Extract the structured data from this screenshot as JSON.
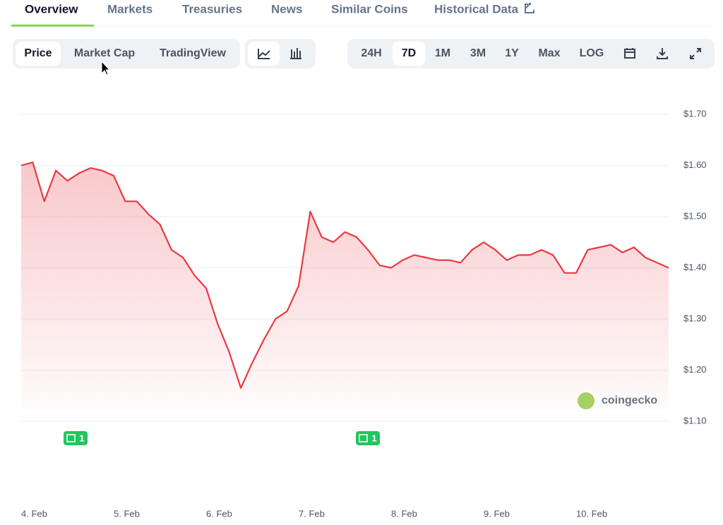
{
  "tabs": [
    "Overview",
    "Markets",
    "Treasuries",
    "News",
    "Similar Coins",
    "Historical Data"
  ],
  "chart_modes": [
    "Price",
    "Market Cap",
    "TradingView"
  ],
  "ranges": [
    "24H",
    "7D",
    "1M",
    "3M",
    "1Y",
    "Max",
    "LOG"
  ],
  "news_markers": [
    "1",
    "1"
  ],
  "watermark": "coingecko",
  "chart_data": {
    "type": "line",
    "categories": [
      "4. Feb",
      null,
      null,
      null,
      null,
      null,
      null,
      null,
      "5. Feb",
      null,
      null,
      null,
      null,
      null,
      null,
      null,
      "6. Feb",
      null,
      null,
      null,
      null,
      null,
      null,
      null,
      "7. Feb",
      null,
      null,
      null,
      null,
      null,
      null,
      null,
      "8. Feb",
      null,
      null,
      null,
      null,
      null,
      null,
      null,
      "9. Feb",
      null,
      null,
      null,
      null,
      null,
      null,
      null,
      "10. Feb",
      null,
      null,
      null,
      null,
      null,
      null,
      null,
      null
    ],
    "values": [
      1.6,
      1.606,
      1.53,
      1.59,
      1.57,
      1.585,
      1.595,
      1.59,
      1.58,
      1.53,
      1.53,
      1.505,
      1.485,
      1.435,
      1.42,
      1.385,
      1.36,
      1.29,
      1.235,
      1.165,
      1.215,
      1.26,
      1.3,
      1.315,
      1.365,
      1.51,
      1.46,
      1.45,
      1.47,
      1.46,
      1.435,
      1.405,
      1.4,
      1.415,
      1.425,
      1.42,
      1.415,
      1.415,
      1.41,
      1.435,
      1.45,
      1.435,
      1.415,
      1.425,
      1.425,
      1.435,
      1.425,
      1.39,
      1.39,
      1.435,
      1.44,
      1.445,
      1.43,
      1.44,
      1.42,
      1.41,
      1.4
    ],
    "color": "#ea3943",
    "ylim": [
      1.1,
      1.7
    ],
    "yticks": [
      {
        "value": 1.1,
        "label": "$1.10"
      },
      {
        "value": 1.2,
        "label": "$1.20"
      },
      {
        "value": 1.3,
        "label": "$1.30"
      },
      {
        "value": 1.4,
        "label": "$1.40"
      },
      {
        "value": 1.5,
        "label": "$1.50"
      },
      {
        "value": 1.6,
        "label": "$1.60"
      },
      {
        "value": 1.7,
        "label": "$1.70"
      }
    ],
    "grid": true
  }
}
